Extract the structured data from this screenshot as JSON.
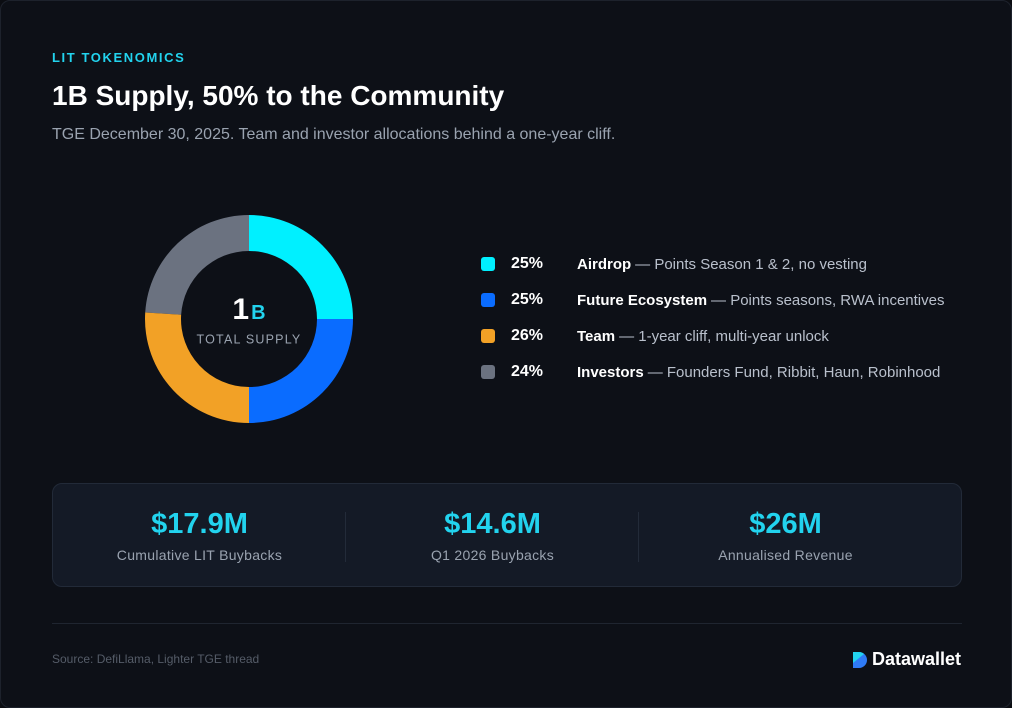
{
  "header": {
    "eyebrow": "LIT TOKENOMICS"
  },
  "chart_data": {
    "type": "pie",
    "donut": true,
    "title": "1B Supply, 50% to the Community",
    "subtitle": "TGE December 30, 2025. Team and investor allocations behind a one-year cliff.",
    "center_value": "1",
    "center_unit": "B",
    "center_label": "TOTAL SUPPLY",
    "categories": [
      "Airdrop",
      "Future Ecosystem",
      "Team",
      "Investors"
    ],
    "descriptions": [
      "— Points Season 1 & 2, no vesting",
      "— Points seasons, RWA incentives",
      "— 1-year cliff, multi-year unlock",
      "— Founders Fund, Ribbit, Haun, Robinhood"
    ],
    "values": [
      25,
      25,
      26,
      24
    ],
    "value_labels": [
      "25%",
      "25%",
      "26%",
      "24%"
    ],
    "colors": [
      "#00f0ff",
      "#0a6cff",
      "#f2a126",
      "#6b7280"
    ]
  },
  "stats": [
    {
      "value": "$17.9M",
      "label": "Cumulative LIT Buybacks"
    },
    {
      "value": "$14.6M",
      "label": "Q1 2026 Buybacks"
    },
    {
      "value": "$26M",
      "label": "Annualised Revenue"
    }
  ],
  "footer": {
    "source": "Source: DefiLlama, Lighter TGE thread",
    "brand": "Datawallet"
  }
}
